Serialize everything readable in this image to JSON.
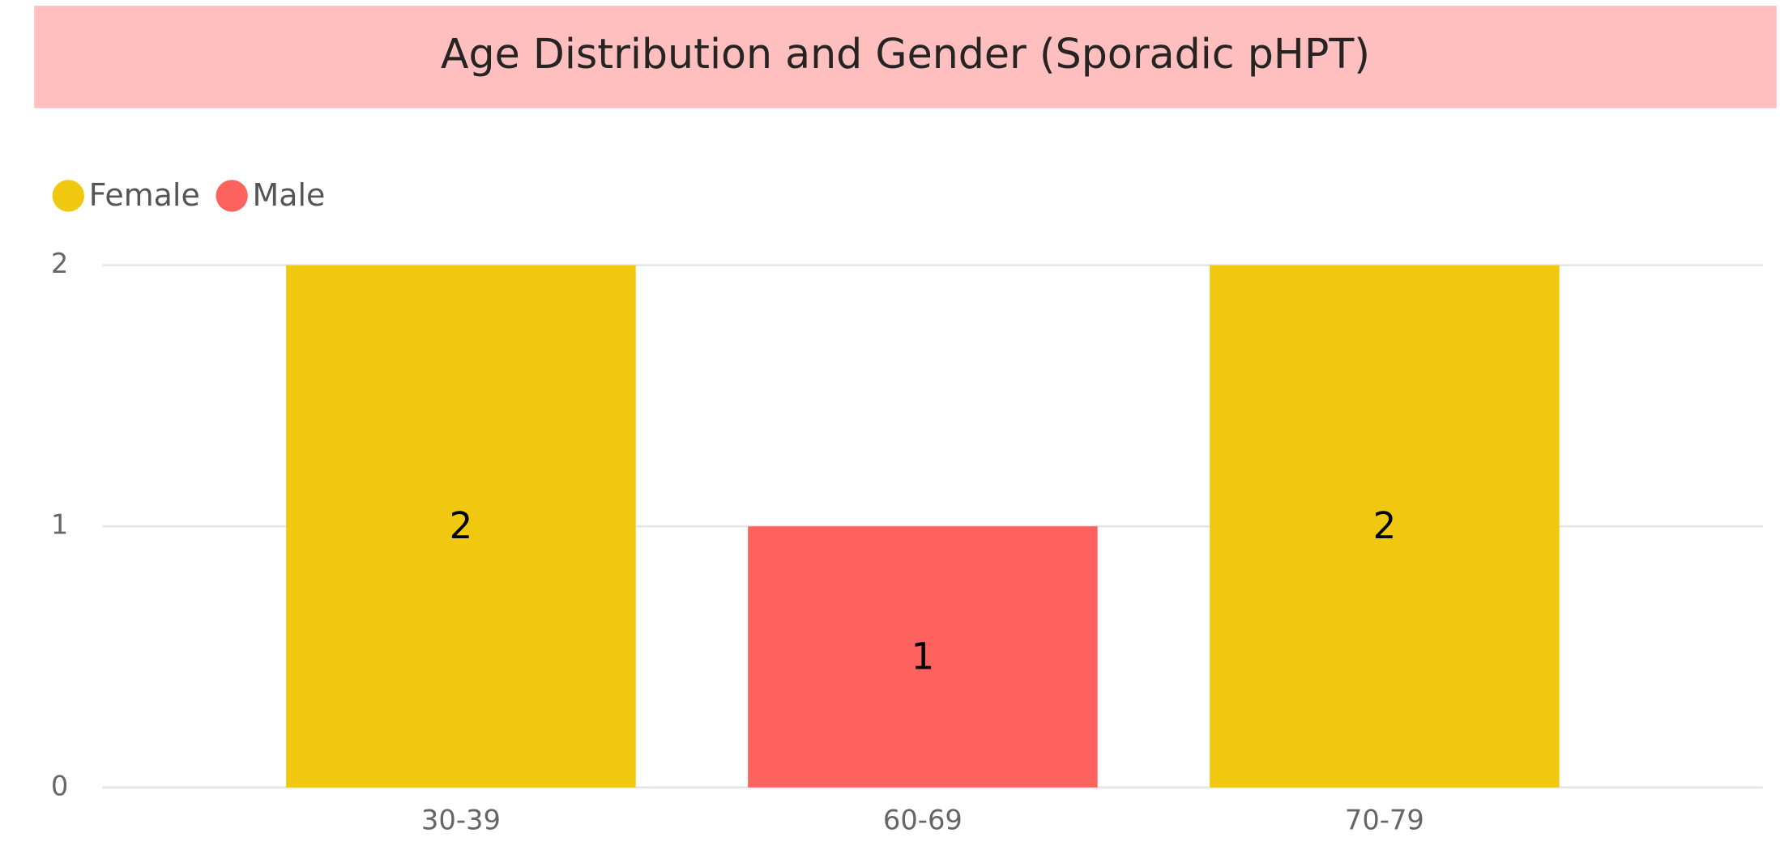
{
  "chart_data": {
    "type": "stacked_bar",
    "title": "Age Distribution and Gender (Sporadic pHPT)",
    "categories": [
      "30-39",
      "60-69",
      "70-79"
    ],
    "series": [
      {
        "name": "Female",
        "color": "#f0c80f",
        "values": [
          2,
          null,
          2
        ]
      },
      {
        "name": "Male",
        "color": "#fe625e",
        "values": [
          null,
          1,
          null
        ]
      }
    ],
    "ylim": [
      0,
      2
    ],
    "yticks": [
      0,
      1,
      2
    ],
    "grid": true,
    "legend": "top-left"
  }
}
